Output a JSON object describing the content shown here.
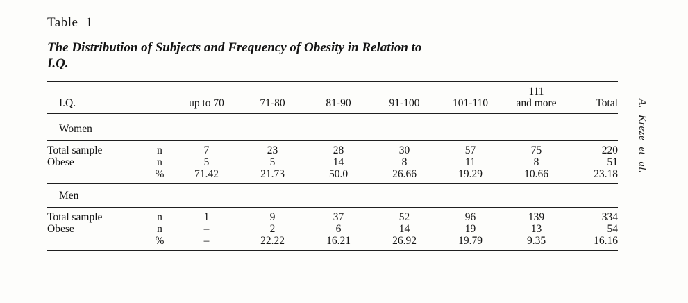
{
  "page": {
    "table_label": "Table 1",
    "title_line1": "The Distribution of Subjects and Frequency of Obesity in Relation to",
    "title_line2": "I.Q.",
    "side_note": "A. Kreze et al."
  },
  "table": {
    "header": {
      "iq_label": "I.Q.",
      "columns": [
        [
          "up to 70"
        ],
        [
          "71-80"
        ],
        [
          "81-90"
        ],
        [
          "91-100"
        ],
        [
          "101-110"
        ],
        [
          "111",
          "and more"
        ],
        [
          "Total"
        ]
      ]
    },
    "sections": [
      {
        "name": "Women",
        "rows": [
          {
            "label": "Total sample",
            "stat": "n",
            "values": [
              "7",
              "23",
              "28",
              "30",
              "57",
              "75",
              "220"
            ]
          },
          {
            "label": "Obese",
            "stat": "n",
            "values": [
              "5",
              "5",
              "14",
              "8",
              "11",
              "8",
              "51"
            ]
          },
          {
            "label": "",
            "stat": "%",
            "values": [
              "71.42",
              "21.73",
              "50.0",
              "26.66",
              "19.29",
              "10.66",
              "23.18"
            ]
          }
        ]
      },
      {
        "name": "Men",
        "rows": [
          {
            "label": "Total sample",
            "stat": "n",
            "values": [
              "1",
              "9",
              "37",
              "52",
              "96",
              "139",
              "334"
            ]
          },
          {
            "label": "Obese",
            "stat": "n",
            "values": [
              "–",
              "2",
              "6",
              "14",
              "19",
              "13",
              "54"
            ]
          },
          {
            "label": "",
            "stat": "%",
            "values": [
              "–",
              "22.22",
              "16.21",
              "26.92",
              "19.79",
              "9.35",
              "16.16"
            ]
          }
        ]
      }
    ]
  },
  "colors": {
    "paper": "#fdfdfb",
    "ink": "#141414"
  }
}
